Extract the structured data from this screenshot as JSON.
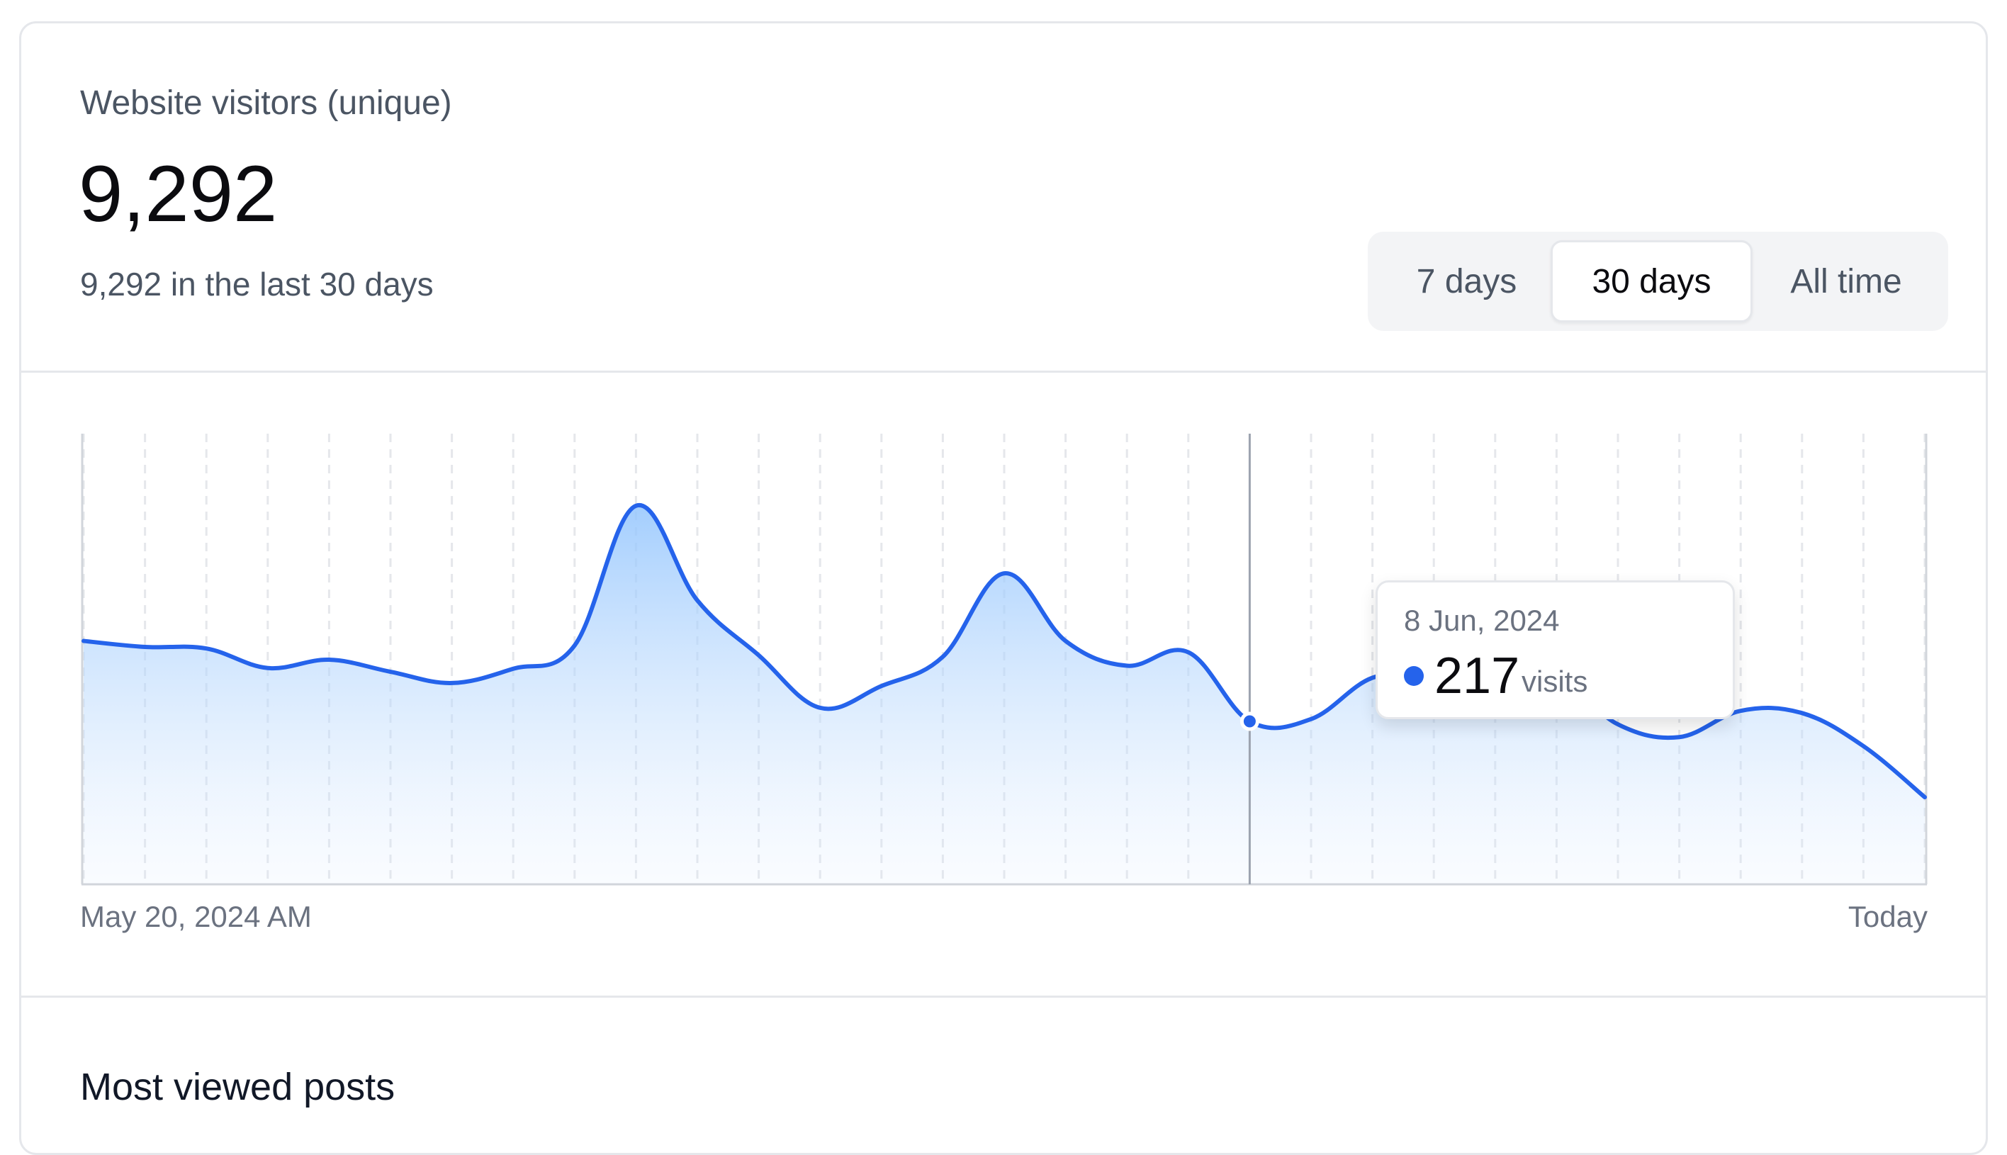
{
  "header": {
    "title": "Website visitors (unique)",
    "value": "9,292",
    "subtitle": "9,292 in the last 30 days"
  },
  "range_selector": {
    "options": [
      "7 days",
      "30 days",
      "All time"
    ],
    "selected": "30 days"
  },
  "chart_data": {
    "type": "area",
    "x_start_label": "May 20, 2024 AM",
    "x_end_label": "Today",
    "x": [
      "2024-05-20",
      "2024-05-21",
      "2024-05-22",
      "2024-05-23",
      "2024-05-24",
      "2024-05-25",
      "2024-05-26",
      "2024-05-27",
      "2024-05-28",
      "2024-05-29",
      "2024-05-30",
      "2024-05-31",
      "2024-06-01",
      "2024-06-02",
      "2024-06-03",
      "2024-06-04",
      "2024-06-05",
      "2024-06-06",
      "2024-06-07",
      "2024-06-08",
      "2024-06-09",
      "2024-06-10",
      "2024-06-11",
      "2024-06-12",
      "2024-06-13",
      "2024-06-14",
      "2024-06-15",
      "2024-06-16",
      "2024-06-17",
      "2024-06-18",
      "2024-06-19"
    ],
    "values": [
      324,
      316,
      314,
      288,
      299,
      283,
      268,
      287,
      318,
      504,
      378,
      305,
      235,
      264,
      303,
      414,
      324,
      291,
      309,
      217,
      220,
      275,
      279,
      266,
      276,
      213,
      196,
      231,
      228,
      184,
      116
    ],
    "ylim": [
      0,
      600
    ],
    "grid": "vertical-dashed",
    "color": "#2563eb",
    "highlight_index": 19
  },
  "tooltip": {
    "date": "8 Jun, 2024",
    "value": "217",
    "unit": "visits"
  },
  "sections": {
    "most_viewed_title": "Most viewed posts"
  }
}
